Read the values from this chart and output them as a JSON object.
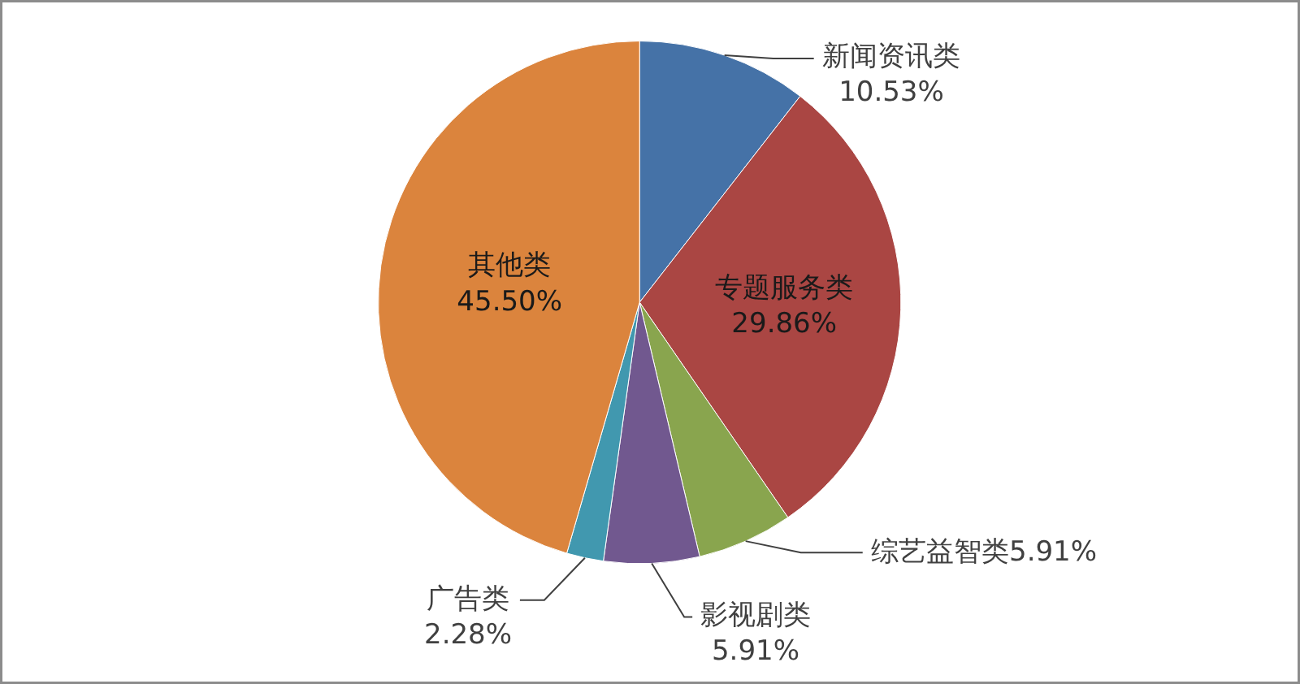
{
  "chart_data": {
    "type": "pie",
    "categories": [
      "新闻资讯类",
      "专题服务类",
      "综艺益智类",
      "影视剧类",
      "广告类",
      "其他类"
    ],
    "values": [
      10.53,
      29.86,
      5.91,
      5.91,
      2.28,
      45.5
    ],
    "value_labels": [
      "10.53%",
      "29.86%",
      "5.91%",
      "5.91%",
      "2.28%",
      "45.50%"
    ],
    "colors": [
      "#4572a7",
      "#aa4643",
      "#89a54e",
      "#71588f",
      "#4198af",
      "#db843d"
    ]
  }
}
